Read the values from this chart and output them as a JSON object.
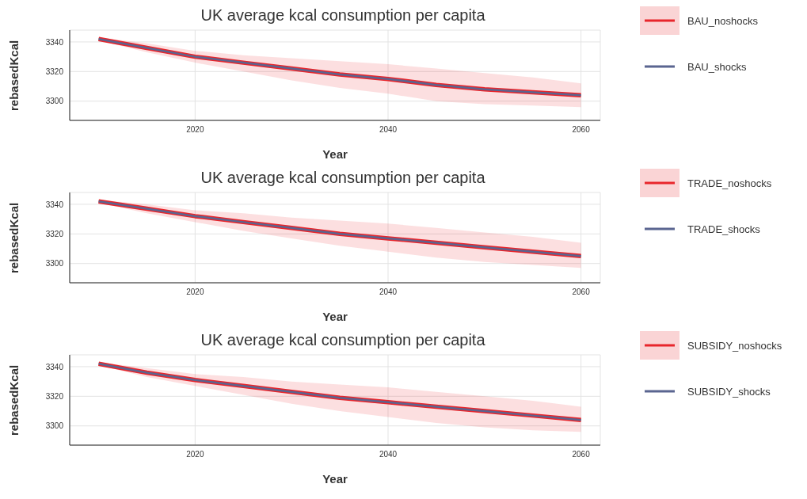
{
  "chart_data": [
    {
      "type": "line",
      "title": "UK average kcal consumption per capita",
      "xlabel": "Year",
      "ylabel": "rebasedKcal",
      "x": [
        2010,
        2015,
        2020,
        2025,
        2030,
        2035,
        2040,
        2045,
        2050,
        2055,
        2060
      ],
      "xlim": [
        2007,
        2062
      ],
      "xticks": [
        2020,
        2040,
        2060
      ],
      "ylim": [
        3287,
        3348
      ],
      "yticks": [
        3300,
        3320,
        3340
      ],
      "grid": true,
      "legend": "right",
      "marker": "none",
      "line_style": "solid",
      "series": [
        {
          "name": "BAU_noshocks",
          "color": "#e8262c",
          "values": [
            3342,
            3336,
            3330,
            3326,
            3322,
            3318,
            3315,
            3311,
            3308,
            3306,
            3304
          ],
          "lower": [
            3341,
            3333,
            3326,
            3320,
            3314,
            3309,
            3305,
            3300,
            3298,
            3297,
            3296
          ],
          "upper": [
            3343,
            3339,
            3334,
            3331,
            3329,
            3327,
            3325,
            3322,
            3319,
            3316,
            3312
          ]
        },
        {
          "name": "BAU_shocks",
          "color": "#5a6590",
          "values": [
            3342,
            3336,
            3330,
            3326,
            3322,
            3318,
            3315,
            3311,
            3308,
            3306,
            3304
          ]
        }
      ]
    },
    {
      "type": "line",
      "title": "UK average kcal consumption per capita",
      "xlabel": "Year",
      "ylabel": "rebasedKcal",
      "x": [
        2010,
        2015,
        2020,
        2025,
        2030,
        2035,
        2040,
        2045,
        2050,
        2055,
        2060
      ],
      "xlim": [
        2007,
        2062
      ],
      "xticks": [
        2020,
        2040,
        2060
      ],
      "ylim": [
        3287,
        3348
      ],
      "yticks": [
        3300,
        3320,
        3340
      ],
      "grid": true,
      "legend": "right",
      "marker": "none",
      "line_style": "solid",
      "series": [
        {
          "name": "TRADE_noshocks",
          "color": "#e8262c",
          "values": [
            3342,
            3337,
            3332,
            3328,
            3324,
            3320,
            3317,
            3314,
            3311,
            3308,
            3305
          ],
          "lower": [
            3341,
            3334,
            3328,
            3322,
            3317,
            3312,
            3308,
            3304,
            3301,
            3299,
            3297
          ],
          "upper": [
            3343,
            3340,
            3336,
            3334,
            3331,
            3329,
            3327,
            3324,
            3321,
            3318,
            3314
          ]
        },
        {
          "name": "TRADE_shocks",
          "color": "#5a6590",
          "values": [
            3342,
            3337,
            3332,
            3328,
            3324,
            3320,
            3317,
            3314,
            3311,
            3308,
            3305
          ]
        }
      ]
    },
    {
      "type": "line",
      "title": "UK average kcal consumption per capita",
      "xlabel": "Year",
      "ylabel": "rebasedKcal",
      "x": [
        2010,
        2015,
        2020,
        2025,
        2030,
        2035,
        2040,
        2045,
        2050,
        2055,
        2060
      ],
      "xlim": [
        2007,
        2062
      ],
      "xticks": [
        2020,
        2040,
        2060
      ],
      "ylim": [
        3287,
        3348
      ],
      "yticks": [
        3300,
        3320,
        3340
      ],
      "grid": true,
      "legend": "right",
      "marker": "none",
      "line_style": "solid",
      "series": [
        {
          "name": "SUBSIDY_noshocks",
          "color": "#e8262c",
          "values": [
            3342,
            3336,
            3331,
            3327,
            3323,
            3319,
            3316,
            3313,
            3310,
            3307,
            3304
          ],
          "lower": [
            3341,
            3333,
            3327,
            3321,
            3315,
            3310,
            3306,
            3302,
            3299,
            3297,
            3296
          ],
          "upper": [
            3343,
            3339,
            3335,
            3333,
            3330,
            3328,
            3326,
            3323,
            3320,
            3317,
            3313
          ]
        },
        {
          "name": "SUBSIDY_shocks",
          "color": "#5a6590",
          "values": [
            3342,
            3336,
            3331,
            3327,
            3323,
            3319,
            3316,
            3313,
            3310,
            3307,
            3304
          ]
        }
      ]
    }
  ]
}
